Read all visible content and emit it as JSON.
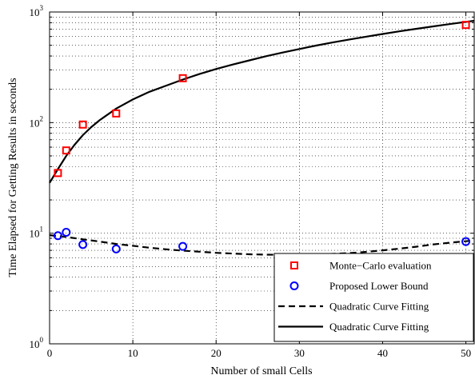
{
  "chart_data": {
    "type": "scatter",
    "xlabel": "Number of small Cells",
    "ylabel": "Time Elapsed for Getting Results in seconds",
    "xlim": [
      0,
      51
    ],
    "ylim": [
      1,
      1000
    ],
    "yscale": "log",
    "x_ticks": [
      "0",
      "10",
      "20",
      "30",
      "40",
      "50"
    ],
    "y_ticks": [
      {
        "base": "10",
        "exp": "0"
      },
      {
        "base": "10",
        "exp": "1"
      },
      {
        "base": "10",
        "exp": "2"
      },
      {
        "base": "10",
        "exp": "3"
      }
    ],
    "grid": true,
    "legend_position": "bottom-right",
    "series": [
      {
        "name": "Monte−Carlo evaluation",
        "kind": "marker",
        "marker": "square",
        "color": "#ff0000",
        "x": [
          1,
          2,
          4,
          8,
          16,
          50
        ],
        "y": [
          35,
          56,
          96,
          121,
          252,
          764
        ]
      },
      {
        "name": "Proposed Lower Bound",
        "kind": "marker",
        "marker": "circle",
        "color": "#0000ff",
        "x": [
          1,
          2,
          4,
          8,
          16,
          50
        ],
        "y": [
          9.5,
          10.2,
          7.9,
          7.2,
          7.6,
          8.4
        ]
      },
      {
        "name": "Quadratic Curve Fitting",
        "kind": "line",
        "style": "dashed",
        "color": "#000000",
        "x": [
          0,
          2,
          4,
          6,
          8,
          10,
          12,
          14,
          16,
          18,
          20,
          22,
          24,
          26,
          28,
          30,
          32,
          34,
          36,
          38,
          40,
          42,
          44,
          46,
          48,
          51
        ],
        "y": [
          9.6,
          9.25,
          8.8,
          8.4,
          8.0,
          7.7,
          7.4,
          7.15,
          6.95,
          6.8,
          6.65,
          6.55,
          6.45,
          6.4,
          6.38,
          6.38,
          6.42,
          6.5,
          6.6,
          6.78,
          7.0,
          7.25,
          7.55,
          7.9,
          8.2,
          8.6
        ]
      },
      {
        "name": "Quadratic Curve Fitting",
        "kind": "line",
        "style": "solid",
        "color": "#000000",
        "x": [
          0,
          1,
          2,
          3,
          4,
          5,
          6,
          8,
          10,
          12,
          14,
          16,
          18,
          20,
          22,
          24,
          26,
          28,
          30,
          32,
          34,
          36,
          38,
          40,
          42,
          44,
          46,
          48,
          51
        ],
        "y": [
          28.5,
          38,
          50,
          63,
          77,
          91,
          105,
          134,
          162,
          190,
          216,
          245,
          275,
          305,
          335,
          365,
          398,
          430,
          463,
          497,
          530,
          564,
          598,
          633,
          668,
          704,
          740,
          776,
          832
        ]
      }
    ]
  }
}
